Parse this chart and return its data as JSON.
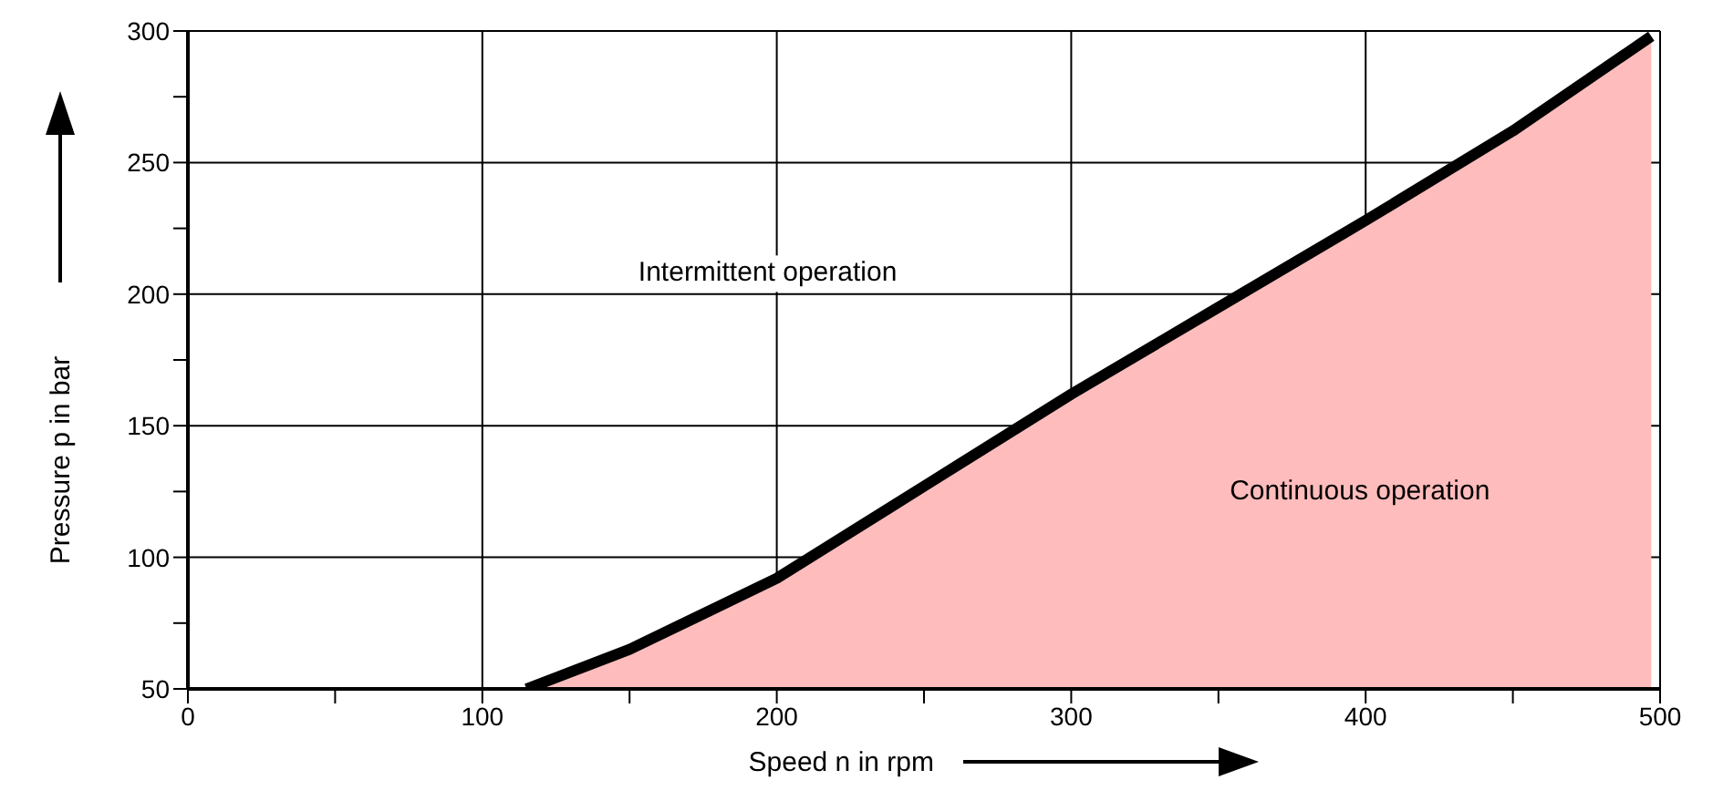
{
  "chart_data": {
    "type": "area",
    "xlabel": "Speed n in rpm",
    "ylabel": "Pressure p in bar",
    "x": [
      115,
      150,
      200,
      240,
      300,
      350,
      400,
      450,
      497
    ],
    "series": [
      {
        "color": "#ffbcbc",
        "values": [
          50,
          65,
          92,
          120,
          162,
          195,
          228,
          262,
          298
        ]
      }
    ],
    "xlim": [
      0,
      500
    ],
    "ylim": [
      50,
      300
    ],
    "xticks": [
      0,
      {
        "value": 50,
        "label": null
      },
      100,
      {
        "value": 150,
        "label": null
      },
      200,
      {
        "value": 250,
        "label": null
      },
      300,
      {
        "value": 350,
        "label": null
      },
      400,
      {
        "value": 450,
        "label": null
      },
      500
    ],
    "yticks": [
      50,
      {
        "value": 75,
        "label": null
      },
      100,
      {
        "value": 125,
        "label": null
      },
      150,
      {
        "value": 175,
        "label": null
      },
      200,
      {
        "value": 225,
        "label": null
      },
      250,
      {
        "value": 275,
        "label": null
      },
      300
    ],
    "grid": true,
    "annotations": [
      "Intermittent operation",
      "Continuous operation"
    ]
  }
}
